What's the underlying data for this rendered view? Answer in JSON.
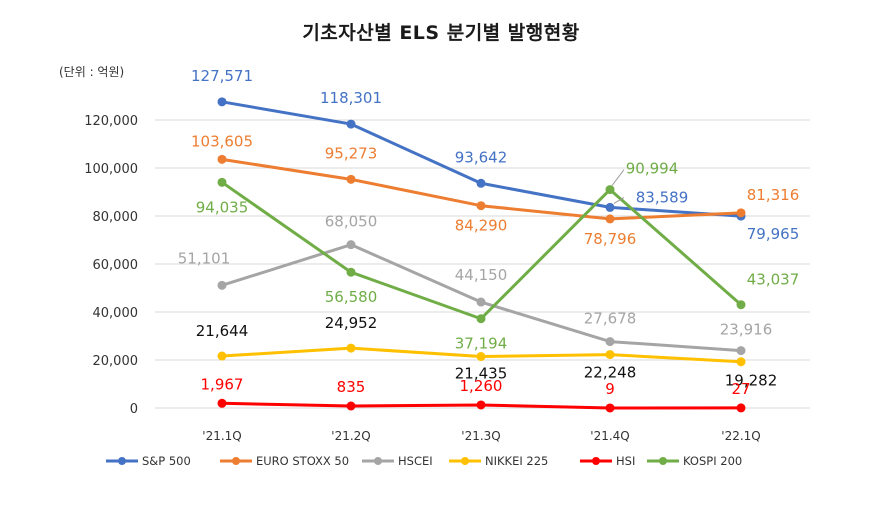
{
  "title": "기초자산별 ELS 분기별 발행현황",
  "unit_label": "(단위 : 억원)",
  "chart_data": {
    "type": "line",
    "title": "기초자산별 ELS 분기별 발행현황",
    "xlabel": "",
    "ylabel": "",
    "ylim": [
      0,
      120000
    ],
    "yticks": [
      "0",
      "20,000",
      "40,000",
      "60,000",
      "80,000",
      "100,000",
      "120,000"
    ],
    "categories": [
      "'21.1Q",
      "'21.2Q",
      "'21.3Q",
      "'21.4Q",
      "'22.1Q"
    ],
    "grid": true,
    "legend": "bottom",
    "series": [
      {
        "name": "S&P 500",
        "color": "#4472C4",
        "values": [
          127571,
          118301,
          93642,
          83589,
          79965
        ],
        "labels": [
          "127,571",
          "118,301",
          "93,642",
          "83,589",
          "79,965"
        ]
      },
      {
        "name": "EURO STOXX 50",
        "color": "#ED7D31",
        "values": [
          103605,
          95273,
          84290,
          78796,
          81316
        ],
        "labels": [
          "103,605",
          "95,273",
          "84,290",
          "78,796",
          "81,316"
        ]
      },
      {
        "name": "HSCEI",
        "color": "#A5A5A5",
        "values": [
          51101,
          68050,
          44150,
          27678,
          23916
        ],
        "labels": [
          "51,101",
          "68,050",
          "44,150",
          "27,678",
          "23,916"
        ]
      },
      {
        "name": "NIKKEI 225",
        "color": "#FFC000",
        "values": [
          21644,
          24952,
          21435,
          22248,
          19282
        ],
        "labels": [
          "21,644",
          "24,952",
          "21,435",
          "22,248",
          "19,282"
        ]
      },
      {
        "name": "HSI",
        "color": "#FF0000",
        "values": [
          1967,
          835,
          1260,
          9,
          27
        ],
        "labels": [
          "1,967",
          "835",
          "1,260",
          "9",
          "27"
        ]
      },
      {
        "name": "KOSPI 200",
        "color": "#70AD47",
        "values": [
          94035,
          56580,
          37194,
          90994,
          43037
        ],
        "labels": [
          "94,035",
          "56,580",
          "37,194",
          "90,994",
          "43,037"
        ]
      }
    ]
  }
}
